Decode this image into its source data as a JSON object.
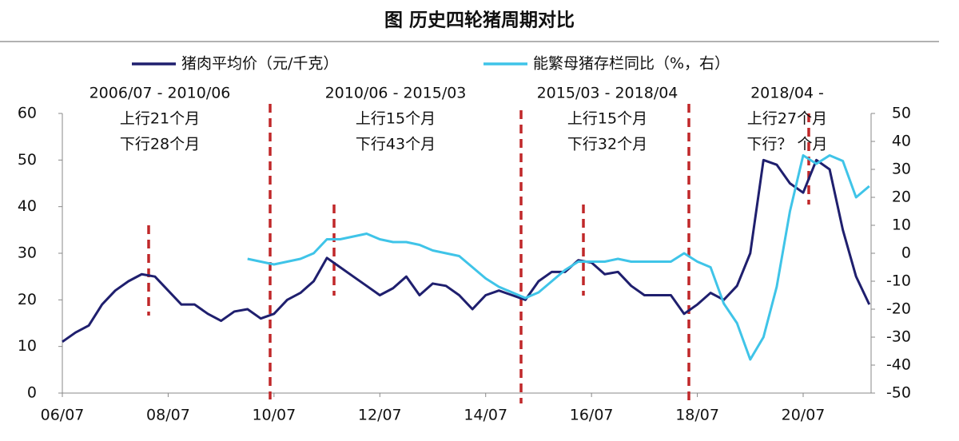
{
  "chart_data": {
    "type": "line",
    "title": "图  历史四轮猪周期对比",
    "x": [
      "06/07",
      "06/10",
      "07/01",
      "07/04",
      "07/07",
      "07/10",
      "08/01",
      "08/04",
      "08/07",
      "08/10",
      "09/01",
      "09/04",
      "09/07",
      "09/10",
      "10/01",
      "10/04",
      "10/07",
      "10/10",
      "11/01",
      "11/04",
      "11/07",
      "11/10",
      "12/01",
      "12/04",
      "12/07",
      "12/10",
      "13/01",
      "13/04",
      "13/07",
      "13/10",
      "14/01",
      "14/04",
      "14/07",
      "14/10",
      "15/01",
      "15/04",
      "15/07",
      "15/10",
      "16/01",
      "16/04",
      "16/07",
      "16/10",
      "17/01",
      "17/04",
      "17/07",
      "17/10",
      "18/01",
      "18/04",
      "18/07",
      "18/10",
      "19/01",
      "19/04",
      "19/07",
      "19/10",
      "20/01",
      "20/04",
      "20/07",
      "20/10",
      "21/01",
      "21/04",
      "21/07",
      "21/10"
    ],
    "xticks": [
      "06/07",
      "08/07",
      "10/07",
      "12/07",
      "14/07",
      "16/07",
      "18/07",
      "20/07"
    ],
    "series": [
      {
        "name": "猪肉平均价（元/千克）",
        "color": "#1f1f6e",
        "values": [
          11,
          13,
          14.5,
          19,
          22,
          24,
          25.5,
          25,
          22,
          19,
          19,
          17,
          15.5,
          17.5,
          18,
          16,
          17,
          20,
          21.5,
          24,
          29,
          27,
          25,
          23,
          21,
          22.5,
          25,
          21,
          23.5,
          23,
          21,
          18,
          21,
          22,
          21,
          20,
          24,
          26,
          26,
          28.5,
          28,
          25.5,
          26,
          23,
          21,
          21,
          21,
          17,
          19,
          21.5,
          20,
          23,
          30,
          50,
          49,
          45,
          43,
          50,
          48,
          35,
          25,
          19
        ]
      },
      {
        "name": "能繁母猪存栏同比（%，右）",
        "color": "#3fc4e8",
        "axis": "y2",
        "values": [
          null,
          null,
          null,
          null,
          null,
          null,
          null,
          null,
          null,
          null,
          null,
          null,
          null,
          null,
          -2,
          -3,
          -4,
          -3,
          -2,
          0,
          5,
          5,
          6,
          7,
          5,
          4,
          4,
          3,
          1,
          0,
          -1,
          -5,
          -9,
          -12,
          -14,
          -16,
          -14,
          -10,
          -6,
          -3,
          -3,
          -3,
          -2,
          -3,
          -3,
          -3,
          -3,
          0,
          -3,
          -5,
          -18,
          -25,
          -38,
          -30,
          -12,
          15,
          35,
          32,
          35,
          33,
          20,
          24
        ]
      }
    ],
    "ylim": [
      0,
      60
    ],
    "yticks": [
      0,
      10,
      20,
      30,
      40,
      50,
      60
    ],
    "y2lim": [
      -50,
      50
    ],
    "y2ticks": [
      -50,
      -40,
      -30,
      -20,
      -10,
      0,
      10,
      20,
      30,
      40,
      50
    ],
    "annotations": [
      [
        "2006/07 - 2010/06",
        "上行21个月",
        "下行28个月"
      ],
      [
        "2010/06 - 2015/03",
        "上行15个月",
        "下行43个月"
      ],
      [
        "2015/03 - 2018/04",
        "上行15个月",
        "下行32个月"
      ],
      [
        "2018/04 -",
        "上行27个月",
        "下行？ 个月"
      ]
    ]
  }
}
